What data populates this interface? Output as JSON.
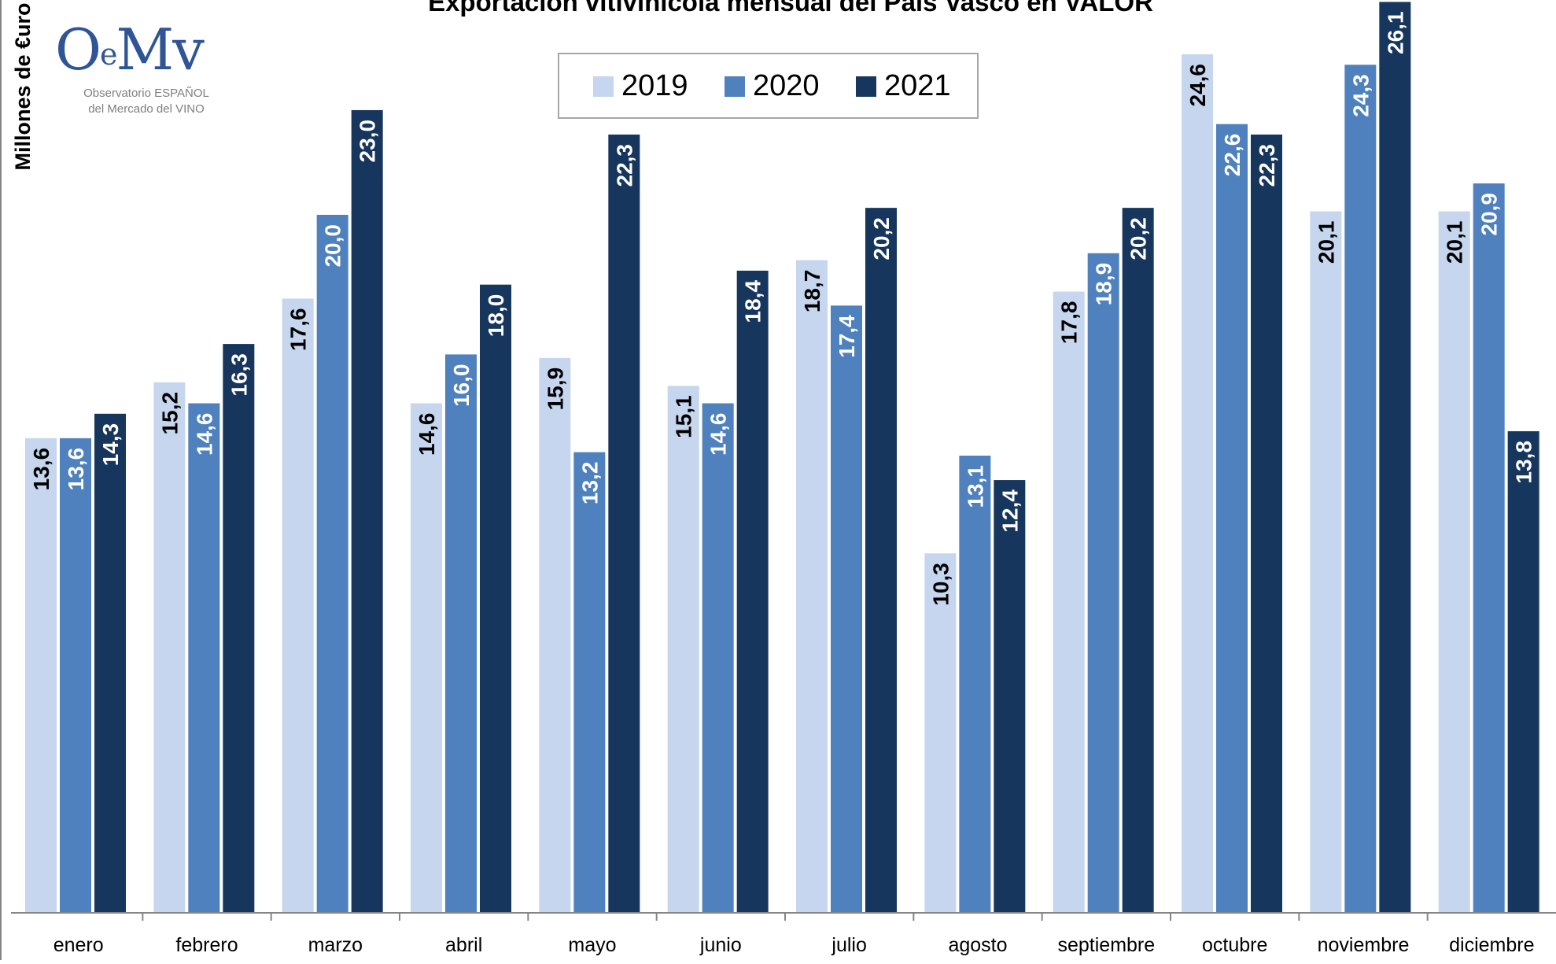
{
  "chart_data": {
    "type": "bar",
    "title": "Exportación vitivinícola mensual del País Vasco en VALOR",
    "ylabel": "Millones de €uro",
    "xlabel": "",
    "categories": [
      "enero",
      "febrero",
      "marzo",
      "abril",
      "mayo",
      "junio",
      "julio",
      "agosto",
      "septiembre",
      "octubre",
      "noviembre",
      "diciembre"
    ],
    "series": [
      {
        "name": "2019",
        "color": "#c5d6ee",
        "label_color": "#000000",
        "values": [
          13.6,
          15.2,
          17.6,
          14.6,
          15.9,
          15.1,
          18.7,
          10.3,
          17.8,
          24.6,
          20.1,
          20.1
        ],
        "labels": [
          "13,6",
          "15,2",
          "17,6",
          "14,6",
          "15,9",
          "15,1",
          "18,7",
          "10,3",
          "17,8",
          "24,6",
          "20,1",
          "20,1"
        ]
      },
      {
        "name": "2020",
        "color": "#4e81bd",
        "label_color": "#ffffff",
        "values": [
          13.6,
          14.6,
          20.0,
          16.0,
          13.2,
          14.6,
          17.4,
          13.1,
          18.9,
          22.6,
          24.3,
          20.9
        ],
        "labels": [
          "13,6",
          "14,6",
          "20,0",
          "16,0",
          "13,2",
          "14,6",
          "17,4",
          "13,1",
          "18,9",
          "22,6",
          "24,3",
          "20,9"
        ]
      },
      {
        "name": "2021",
        "color": "#17365d",
        "label_color": "#ffffff",
        "values": [
          14.3,
          16.3,
          23.0,
          18.0,
          22.3,
          18.4,
          20.2,
          12.4,
          20.2,
          22.3,
          26.1,
          13.8
        ],
        "labels": [
          "14,3",
          "16,3",
          "23,0",
          "18,0",
          "22,3",
          "18,4",
          "20,2",
          "12,4",
          "20,2",
          "22,3",
          "26,1",
          "13,8"
        ]
      }
    ],
    "legend_position": "top-center",
    "grid": false
  },
  "logo": {
    "main": "O",
    "sup": "e",
    "tail": "Mv",
    "line1": "Observatorio ESPAÑOL",
    "line2": "del Mercado del VINO"
  }
}
